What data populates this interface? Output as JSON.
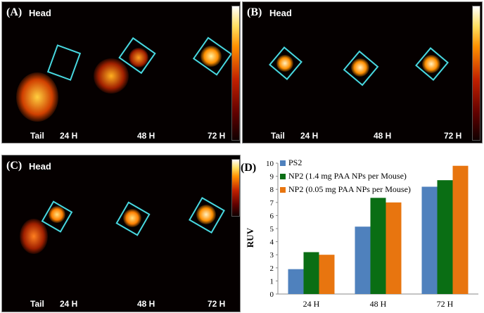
{
  "panels": [
    {
      "id": "A",
      "label": "(A)",
      "head": "Head",
      "tail": "Tail",
      "times": [
        "24 H",
        "48 H",
        "72 H"
      ]
    },
    {
      "id": "B",
      "label": "(B)",
      "head": "Head",
      "tail": "Tail",
      "times": [
        "24 H",
        "48 H",
        "72 H"
      ]
    },
    {
      "id": "C",
      "label": "(C)",
      "head": "Head",
      "tail": "Tail",
      "times": [
        "24 H",
        "48 H",
        "72 H"
      ]
    }
  ],
  "chart_panel_label": "(D)",
  "chart_data": {
    "type": "bar",
    "title": "",
    "xlabel": "",
    "ylabel": "RUV",
    "ylim": [
      0,
      10
    ],
    "yticks": [
      0,
      1,
      2,
      3,
      4,
      5,
      6,
      7,
      8,
      9,
      10
    ],
    "categories": [
      "24 H",
      "48 H",
      "72 H"
    ],
    "series": [
      {
        "name": "PS2",
        "color": "#4f81bd",
        "values": [
          1.9,
          5.15,
          8.2
        ]
      },
      {
        "name": "NP2 (1.4 mg PAA NPs per Mouse)",
        "color": "#0a6e14",
        "values": [
          3.2,
          7.35,
          8.7
        ]
      },
      {
        "name": "NP2 (0.05 mg PAA NPs per Mouse)",
        "color": "#e8750f",
        "values": [
          3.0,
          7.0,
          9.8
        ]
      }
    ],
    "legend_position": "top-left",
    "grid": false
  }
}
